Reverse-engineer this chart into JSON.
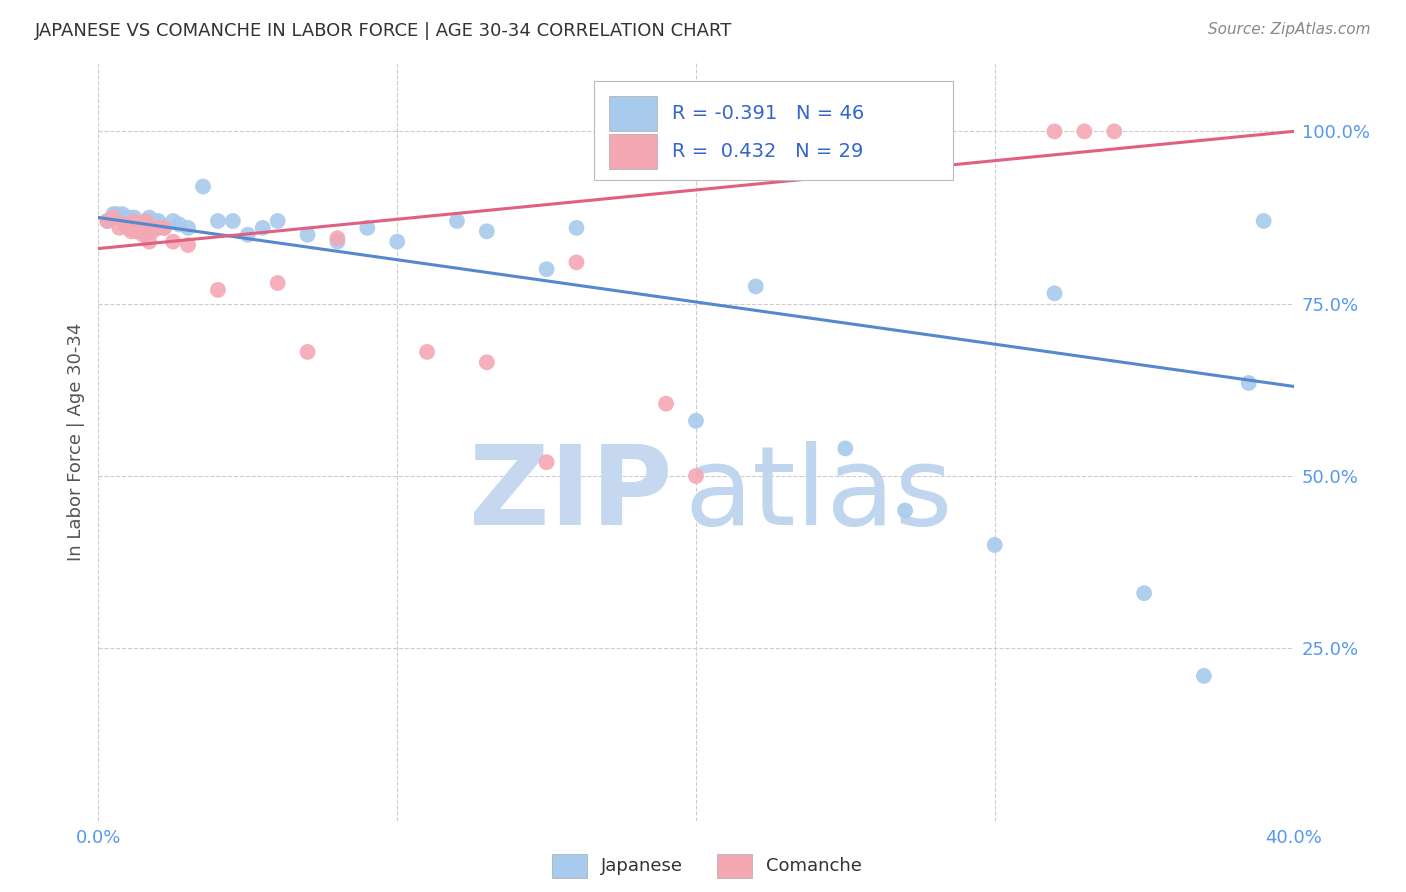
{
  "title": "JAPANESE VS COMANCHE IN LABOR FORCE | AGE 30-34 CORRELATION CHART",
  "source": "Source: ZipAtlas.com",
  "ylabel": "In Labor Force | Age 30-34",
  "x_range": [
    0.0,
    0.4
  ],
  "y_range": [
    0.0,
    1.1
  ],
  "japanese_R": -0.391,
  "japanese_N": 46,
  "comanche_R": 0.432,
  "comanche_N": 29,
  "japanese_color": "#A8CAEC",
  "comanche_color": "#F4A8B4",
  "japanese_line_color": "#5588CC",
  "comanche_line_color": "#E06080",
  "background_color": "#FFFFFF",
  "grid_color": "#CCCCCC",
  "title_color": "#333333",
  "right_tick_color": "#5599EE",
  "legend_color": "#3366CC",
  "watermark_zip_color": "#C5D8F0",
  "watermark_atlas_color": "#C0D5EE",
  "japanese_line_y0": 0.875,
  "japanese_line_y1": 0.63,
  "comanche_line_y0": 0.83,
  "comanche_line_y1": 1.0,
  "japanese_x": [
    0.003,
    0.005,
    0.006,
    0.007,
    0.008,
    0.009,
    0.01,
    0.011,
    0.012,
    0.013,
    0.014,
    0.015,
    0.016,
    0.017,
    0.018,
    0.019,
    0.02,
    0.021,
    0.022,
    0.025,
    0.027,
    0.03,
    0.035,
    0.04,
    0.045,
    0.05,
    0.055,
    0.06,
    0.07,
    0.08,
    0.09,
    0.1,
    0.12,
    0.13,
    0.15,
    0.16,
    0.2,
    0.22,
    0.25,
    0.27,
    0.3,
    0.32,
    0.35,
    0.37,
    0.385,
    0.39
  ],
  "japanese_y": [
    0.87,
    0.88,
    0.88,
    0.875,
    0.88,
    0.87,
    0.875,
    0.865,
    0.875,
    0.855,
    0.865,
    0.855,
    0.87,
    0.875,
    0.87,
    0.86,
    0.87,
    0.865,
    0.86,
    0.87,
    0.865,
    0.86,
    0.92,
    0.87,
    0.87,
    0.85,
    0.86,
    0.87,
    0.85,
    0.84,
    0.86,
    0.84,
    0.87,
    0.855,
    0.8,
    0.86,
    0.58,
    0.775,
    0.54,
    0.45,
    0.4,
    0.765,
    0.33,
    0.21,
    0.635,
    0.87
  ],
  "comanche_x": [
    0.003,
    0.005,
    0.007,
    0.009,
    0.01,
    0.011,
    0.012,
    0.013,
    0.015,
    0.016,
    0.017,
    0.018,
    0.02,
    0.022,
    0.025,
    0.03,
    0.04,
    0.06,
    0.07,
    0.08,
    0.11,
    0.13,
    0.15,
    0.16,
    0.19,
    0.2,
    0.32,
    0.33,
    0.34
  ],
  "comanche_y": [
    0.87,
    0.875,
    0.86,
    0.865,
    0.86,
    0.855,
    0.87,
    0.855,
    0.85,
    0.87,
    0.84,
    0.855,
    0.86,
    0.86,
    0.84,
    0.835,
    0.77,
    0.78,
    0.68,
    0.845,
    0.68,
    0.665,
    0.52,
    0.81,
    0.605,
    0.5,
    1.0,
    1.0,
    1.0
  ]
}
